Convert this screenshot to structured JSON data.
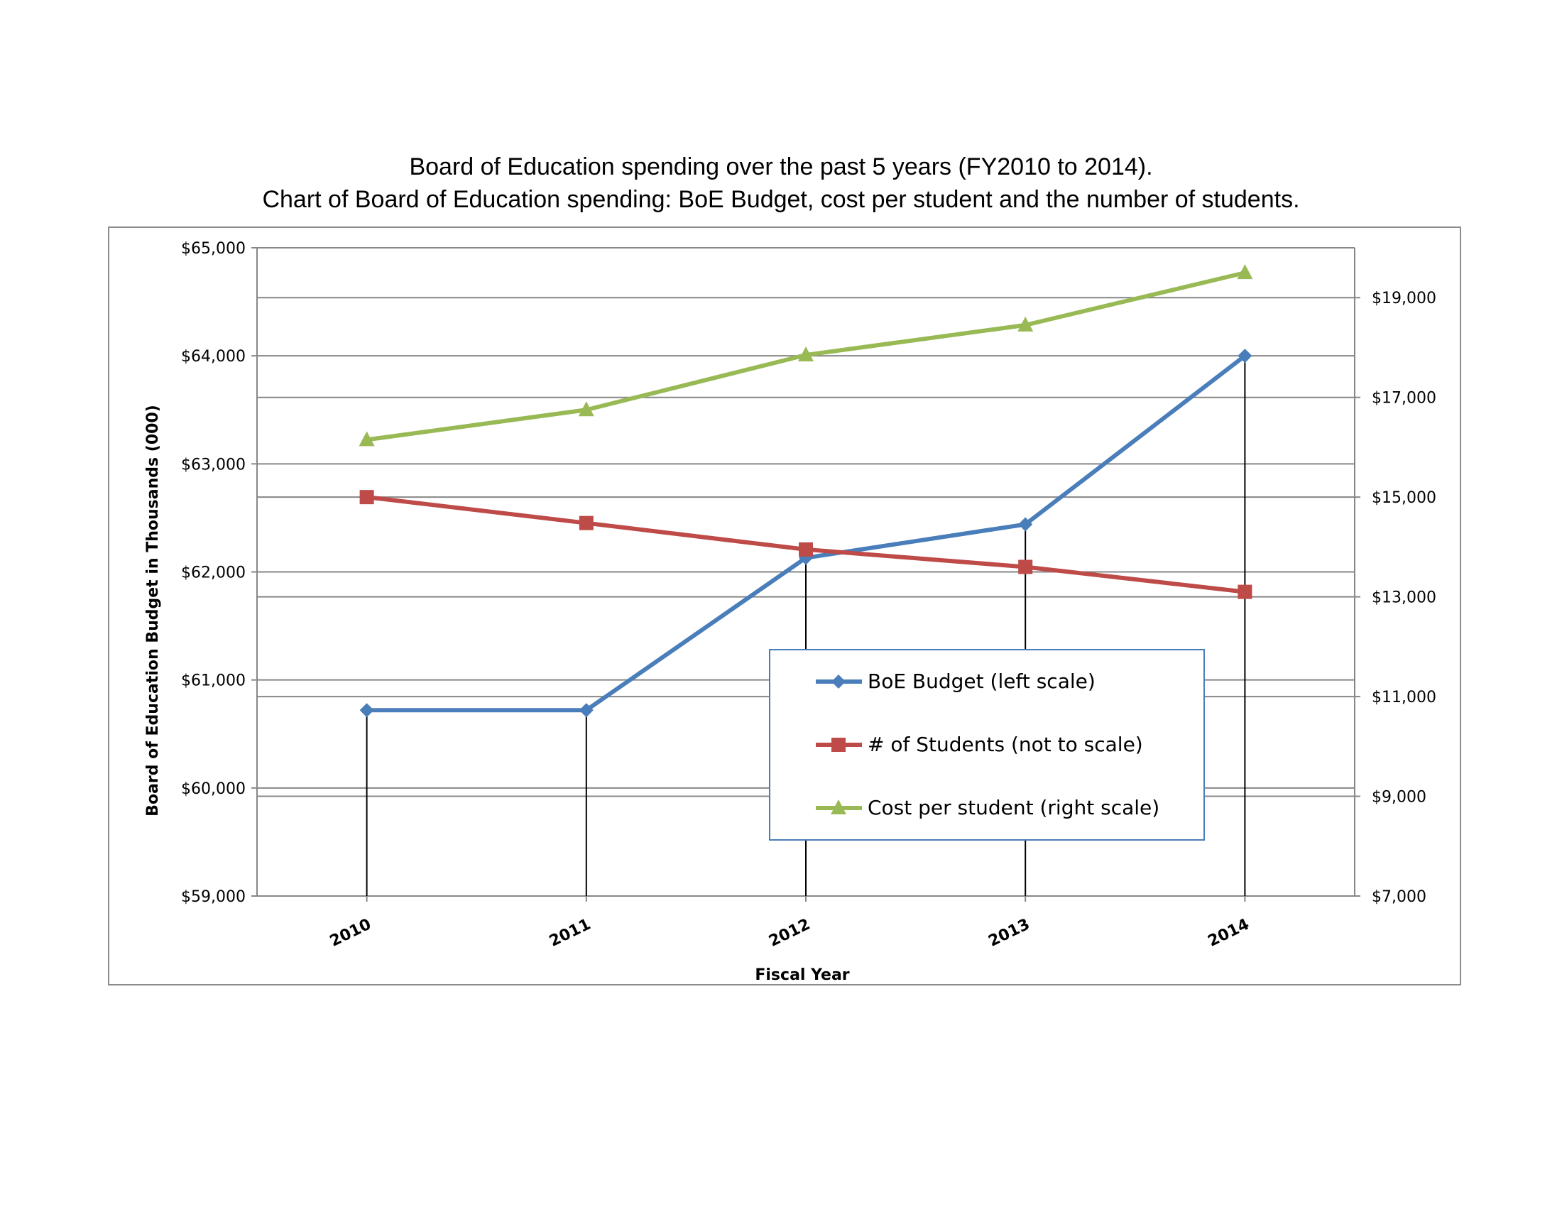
{
  "title_lines": [
    "Board of Education spending over the past 5 years (FY2010 to 2014).",
    "Chart of Board of Education spending: BoE Budget, cost per student and the number of students."
  ],
  "chart_data": {
    "type": "line",
    "categories": [
      "2010",
      "2011",
      "2012",
      "2013",
      "2014"
    ],
    "xlabel": "Fiscal Year",
    "ylabel": "Board of Education Budget in Thousands (000)",
    "y_left": {
      "ylim": [
        59000,
        65000
      ],
      "ticks": [
        59000,
        60000,
        61000,
        62000,
        63000,
        64000,
        65000
      ],
      "tick_labels": [
        "$59,000",
        "$60,000",
        "$61,000",
        "$62,000",
        "$63,000",
        "$64,000",
        "$65,000"
      ]
    },
    "y_right": {
      "ylim": [
        7000,
        20000
      ],
      "ticks": [
        7000,
        9000,
        11000,
        13000,
        15000,
        17000,
        19000
      ],
      "tick_labels": [
        "$7,000",
        "$9,000",
        "$11,000",
        "$13,000",
        "$15,000",
        "$17,000",
        "$19,000"
      ]
    },
    "grid": true,
    "drop_lines": true,
    "legend_placement": "lower-right",
    "series": [
      {
        "name": "BoE Budget (left scale)",
        "axis": "left",
        "color": "#4a7ebb",
        "marker": "diamond",
        "values": [
          60720,
          60720,
          62130,
          62440,
          64000
        ]
      },
      {
        "name": "# of Students (not to scale)",
        "axis": "right",
        "color": "#be4b48",
        "marker": "square",
        "values": [
          15000,
          14480,
          13950,
          13600,
          13100
        ]
      },
      {
        "name": "Cost per student (right scale)",
        "axis": "right",
        "color": "#98b954",
        "marker": "triangle",
        "values": [
          16150,
          16750,
          17850,
          18450,
          19500
        ]
      }
    ]
  }
}
